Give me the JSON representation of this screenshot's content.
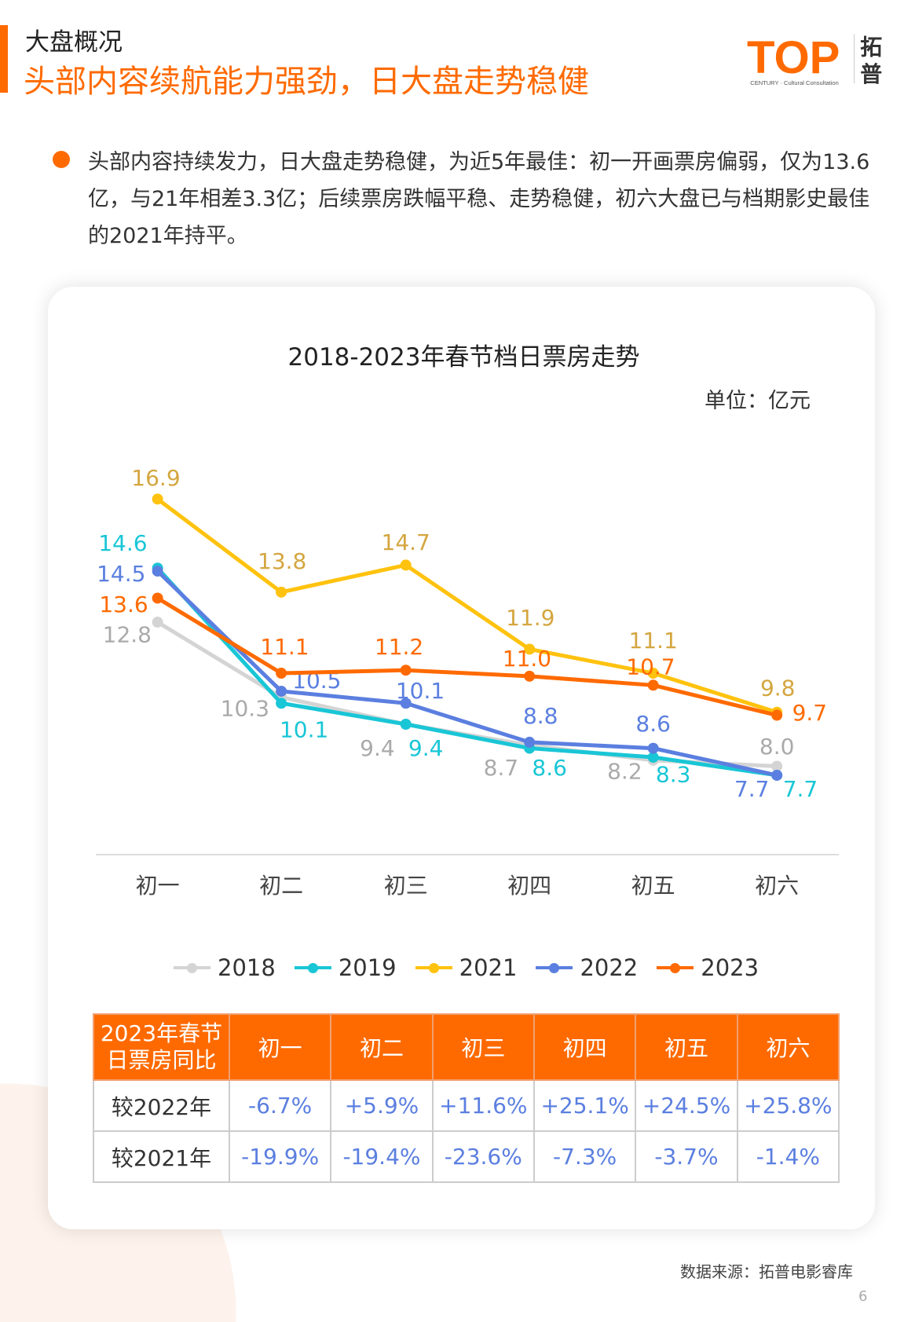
{
  "header": {
    "section": "大盘概况",
    "headline": "头部内容续航能力强劲，日大盘走势稳健"
  },
  "logo": {
    "text": "TOP",
    "cn": "拓普",
    "sub": "CENTURY Cultural Consultation"
  },
  "summary": "头部内容持续发力，日大盘走势稳健，为近5年最佳：初一开画票房偏弱，仅为13.6亿，与21年相差3.3亿；后续票房跌幅平稳、走势稳健，初六大盘已与档期影史最佳的2021年持平。",
  "chart_data": {
    "type": "line",
    "title": "2018-2023年春节档日票房走势",
    "unit": "单位：亿元",
    "categories": [
      "初一",
      "初二",
      "初三",
      "初四",
      "初五",
      "初六"
    ],
    "legend_position": "bottom",
    "grid": false,
    "series": [
      {
        "name": "2018",
        "color": "#d4d4d4",
        "label_color": "#aaaaaa",
        "values": [
          12.8,
          10.3,
          9.4,
          8.7,
          8.2,
          8.0
        ]
      },
      {
        "name": "2019",
        "color": "#19c6d6",
        "label_color": "#19c6d6",
        "values": [
          14.6,
          10.1,
          9.4,
          8.6,
          8.3,
          7.7
        ]
      },
      {
        "name": "2021",
        "color": "#ffc20e",
        "label_color": "#d4a640",
        "values": [
          16.9,
          13.8,
          14.7,
          11.9,
          11.1,
          9.8
        ]
      },
      {
        "name": "2022",
        "color": "#5b7fe0",
        "label_color": "#5b7fe0",
        "values": [
          14.5,
          10.5,
          10.1,
          8.8,
          8.6,
          7.7
        ]
      },
      {
        "name": "2023",
        "color": "#ff6a00",
        "label_color": "#ff6a00",
        "values": [
          13.6,
          11.1,
          11.2,
          11.0,
          10.7,
          9.7
        ]
      }
    ]
  },
  "table": {
    "corner": [
      "2023年春节",
      "日票房同比"
    ],
    "headers": [
      "初一",
      "初二",
      "初三",
      "初四",
      "初五",
      "初六"
    ],
    "rows": [
      {
        "label": "较2022年",
        "values": [
          "-6.7%",
          "+5.9%",
          "+11.6%",
          "+25.1%",
          "+24.5%",
          "+25.8%"
        ]
      },
      {
        "label": "较2021年",
        "values": [
          "-19.9%",
          "-19.4%",
          "-23.6%",
          "-7.3%",
          "-3.7%",
          "-1.4%"
        ]
      }
    ]
  },
  "source": "数据来源：拓普电影睿库",
  "page_number": "6"
}
